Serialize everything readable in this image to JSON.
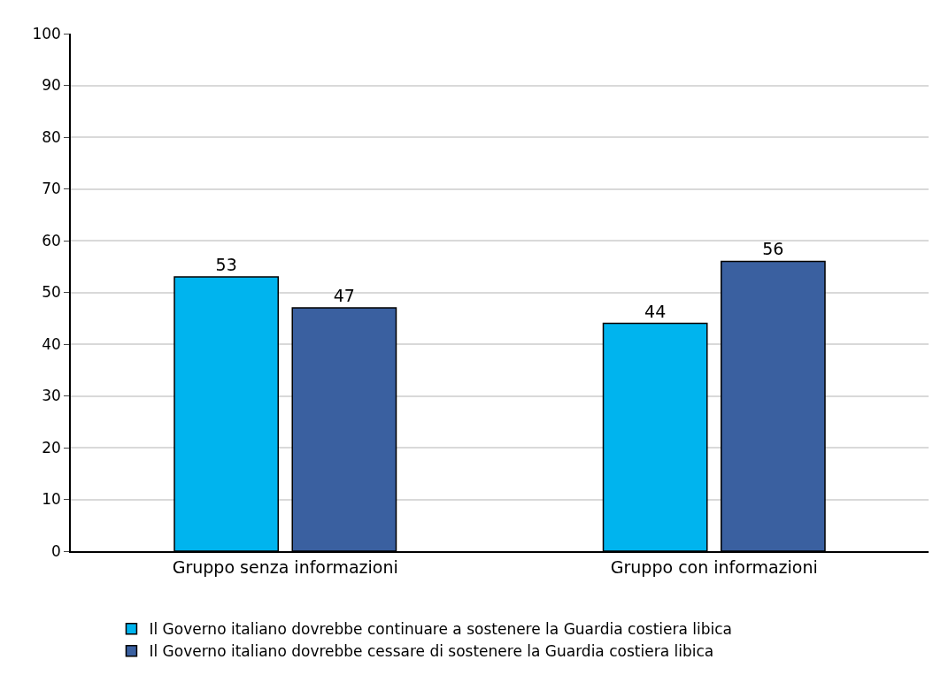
{
  "chart_data": {
    "type": "bar",
    "categories": [
      "Gruppo senza informazioni",
      "Gruppo con informazioni"
    ],
    "series": [
      {
        "name": "Il Governo italiano dovrebbe continuare a sostenere la Guardia costiera libica",
        "color": "#00b4ee",
        "values": [
          53,
          44
        ]
      },
      {
        "name": "Il Governo italiano dovrebbe cessare di sostenere la Guardia costiera libica",
        "color": "#3a60a0",
        "values": [
          47,
          56
        ]
      }
    ],
    "ylim": [
      0,
      100
    ],
    "yticks": [
      0,
      10,
      20,
      30,
      40,
      50,
      60,
      70,
      80,
      90,
      100
    ],
    "grid": "y",
    "legend": "bottom",
    "data_labels": true
  }
}
